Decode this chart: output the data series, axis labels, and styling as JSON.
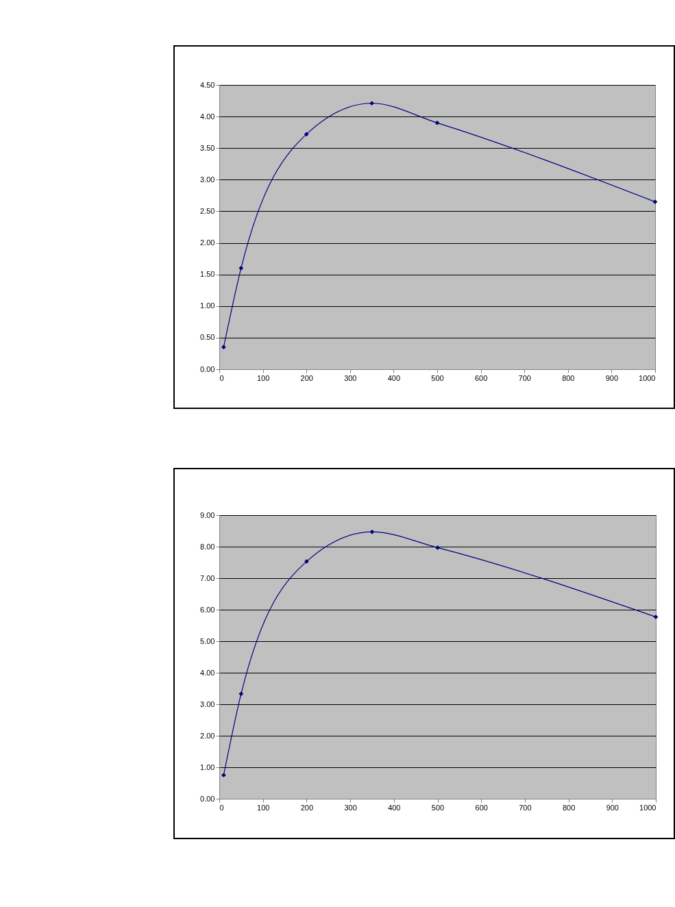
{
  "chart_data": [
    {
      "type": "line",
      "x": [
        10,
        50,
        200,
        350,
        500,
        1000
      ],
      "series": [
        {
          "color": "#000080",
          "values": [
            0.35,
            1.6,
            3.72,
            4.21,
            3.9,
            2.65
          ]
        }
      ],
      "xlim": [
        0,
        1000
      ],
      "xticks": [
        0,
        100,
        200,
        300,
        400,
        500,
        600,
        700,
        800,
        900,
        1000
      ],
      "ylim": [
        0,
        4.5
      ],
      "yticks": [
        {
          "value": 0,
          "label": "0.00"
        },
        {
          "value": 0.5,
          "label": "0.50"
        },
        {
          "value": 1,
          "label": "1.00"
        },
        {
          "value": 1.5,
          "label": "1.50"
        },
        {
          "value": 2,
          "label": "2.00"
        },
        {
          "value": 2.5,
          "label": "2.50"
        },
        {
          "value": 3,
          "label": "3.00"
        },
        {
          "value": 3.5,
          "label": "3.50"
        },
        {
          "value": 4,
          "label": "4.00"
        },
        {
          "value": 4.5,
          "label": "4.50"
        }
      ],
      "grid": "y",
      "marker": "diamond"
    },
    {
      "type": "line",
      "x": [
        10,
        50,
        200,
        350,
        500,
        1000
      ],
      "series": [
        {
          "color": "#000080",
          "values": [
            0.75,
            3.33,
            7.53,
            8.47,
            7.97,
            5.77
          ]
        }
      ],
      "xlim": [
        0,
        1000
      ],
      "xticks": [
        0,
        100,
        200,
        300,
        400,
        500,
        600,
        700,
        800,
        900,
        1000
      ],
      "ylim": [
        0,
        9
      ],
      "yticks": [
        {
          "value": 0,
          "label": "0.00"
        },
        {
          "value": 1,
          "label": "1.00"
        },
        {
          "value": 2,
          "label": "2.00"
        },
        {
          "value": 3,
          "label": "3.00"
        },
        {
          "value": 4,
          "label": "4.00"
        },
        {
          "value": 5,
          "label": "5.00"
        },
        {
          "value": 6,
          "label": "6.00"
        },
        {
          "value": 7,
          "label": "7.00"
        },
        {
          "value": 8,
          "label": "8.00"
        },
        {
          "value": 9,
          "label": "9.00"
        }
      ],
      "grid": "y",
      "marker": "diamond"
    }
  ]
}
